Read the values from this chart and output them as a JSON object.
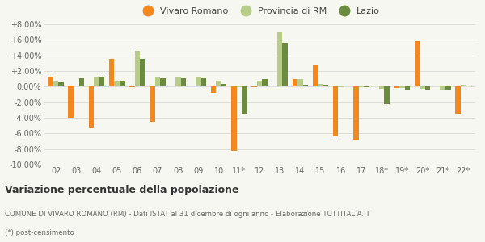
{
  "years": [
    "02",
    "03",
    "04",
    "05",
    "06",
    "07",
    "08",
    "09",
    "10",
    "11*",
    "12",
    "13",
    "14",
    "15",
    "16",
    "17",
    "18*",
    "19*",
    "20*",
    "21*",
    "22*"
  ],
  "vivaro": [
    1.3,
    -4.0,
    -5.3,
    3.5,
    -0.1,
    -4.5,
    0.0,
    0.0,
    -0.8,
    -8.2,
    -0.1,
    0.0,
    1.0,
    2.8,
    -6.4,
    -6.8,
    0.0,
    -0.2,
    5.8,
    0.0,
    -3.5
  ],
  "provincia": [
    0.7,
    0.0,
    1.2,
    0.8,
    4.6,
    1.2,
    1.2,
    1.2,
    0.8,
    -0.1,
    0.8,
    7.0,
    1.0,
    0.3,
    -0.1,
    -0.1,
    -0.3,
    -0.2,
    -0.3,
    -0.5,
    0.2
  ],
  "lazio": [
    0.5,
    1.1,
    1.3,
    0.7,
    3.6,
    1.1,
    1.1,
    1.1,
    0.3,
    -3.5,
    1.0,
    5.6,
    0.2,
    0.2,
    0.0,
    -0.1,
    -2.2,
    -0.5,
    -0.4,
    -0.5,
    0.1
  ],
  "vivaro_color": "#f5871f",
  "provincia_color": "#b8cc8a",
  "lazio_color": "#6b8c3e",
  "bg_color": "#f7f7f2",
  "grid_color": "#d8d8d8",
  "ylim": [
    -10.0,
    8.0
  ],
  "yticks": [
    -10.0,
    -8.0,
    -6.0,
    -4.0,
    -2.0,
    0.0,
    2.0,
    4.0,
    6.0,
    8.0
  ],
  "title": "Variazione percentuale della popolazione",
  "subtitle": "COMUNE DI VIVARO ROMANO (RM) - Dati ISTAT al 31 dicembre di ogni anno - Elaborazione TUTTITALIA.IT",
  "footnote": "(*) post-censimento",
  "legend_labels": [
    "Vivaro Romano",
    "Provincia di RM",
    "Lazio"
  ]
}
